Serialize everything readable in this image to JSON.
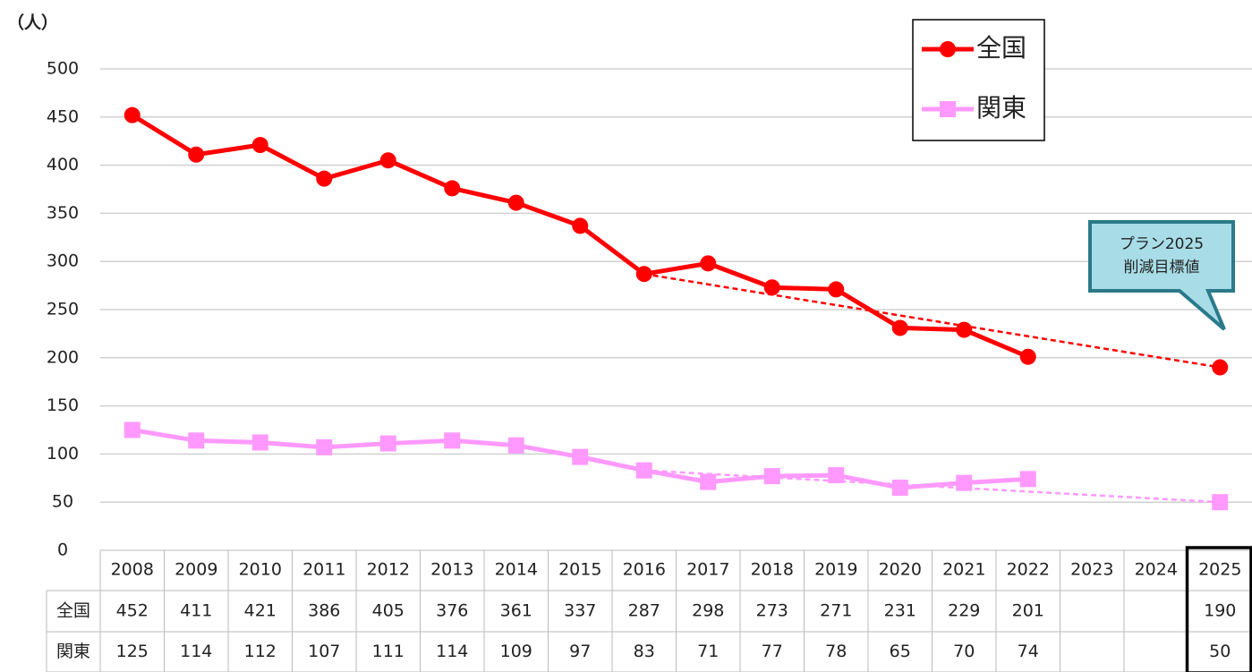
{
  "chart_data": {
    "type": "line",
    "y_label": "（人）",
    "categories": [
      "2008",
      "2009",
      "2010",
      "2011",
      "2012",
      "2013",
      "2014",
      "2015",
      "2016",
      "2017",
      "2018",
      "2019",
      "2020",
      "2021",
      "2022",
      "2023",
      "2024",
      "2025"
    ],
    "series": [
      {
        "name": "全国",
        "color": "#ff0000",
        "marker": "circle",
        "values": [
          452,
          411,
          421,
          386,
          405,
          376,
          361,
          337,
          287,
          298,
          273,
          271,
          231,
          229,
          201,
          null,
          null,
          190
        ]
      },
      {
        "name": "関東",
        "color": "#ff99ff",
        "marker": "square",
        "values": [
          125,
          114,
          112,
          107,
          111,
          114,
          109,
          97,
          83,
          71,
          77,
          78,
          65,
          70,
          74,
          null,
          null,
          50
        ]
      }
    ],
    "annotation": [
      "プラン2025",
      "削減目標値"
    ],
    "ylim": [
      0,
      500
    ],
    "yticks": [
      0,
      50,
      100,
      150,
      200,
      250,
      300,
      350,
      400,
      450,
      500
    ],
    "grid": true,
    "legend": "top-right"
  }
}
